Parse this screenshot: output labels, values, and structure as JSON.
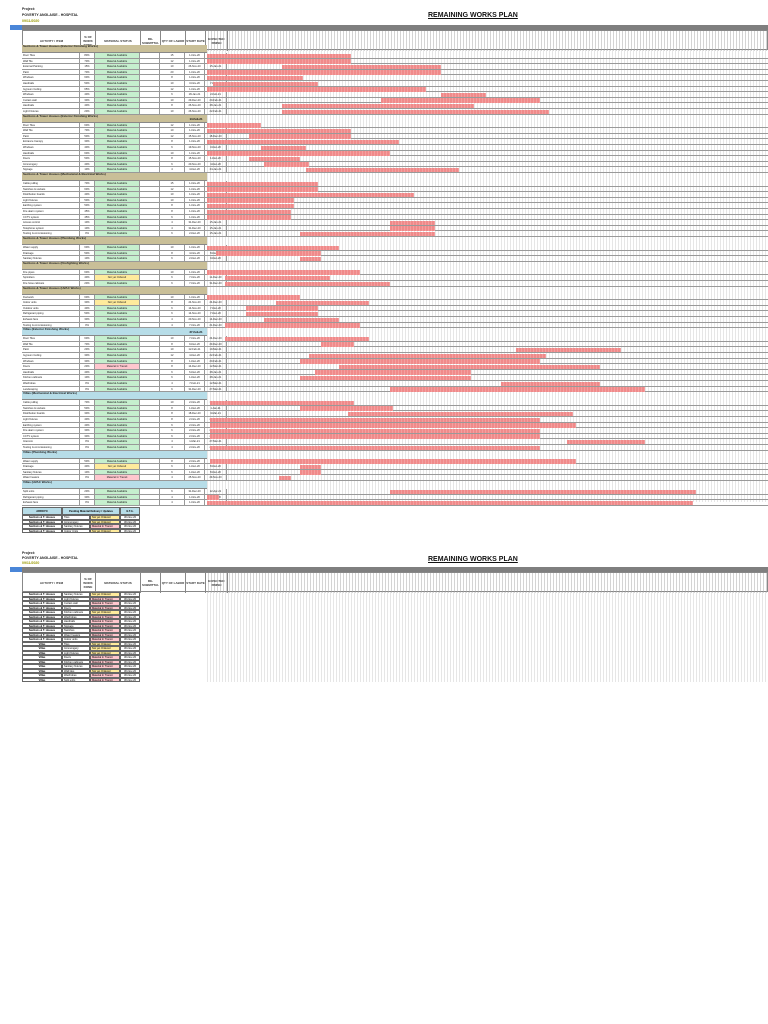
{
  "page1": {
    "project_label": "Project:",
    "project_name": "POVERTY ANGLAISE - HOSPITAL",
    "date": "09/11/2020",
    "title": "REMAINING WORKS PLAN"
  },
  "page2": {
    "project_label": "Project:",
    "project_name": "POVERTY ANGLAISE - HOSPITAL",
    "date": "09/11/2020",
    "title": "REMAINING WORKS PLAN"
  },
  "columns": [
    "ACTIVITY / ITEM",
    "% OF WORK DONE",
    "MATERIAL STATUS",
    "RE-SUBMITTAL",
    "QTY OF LABOR",
    "START DATE",
    "EXPECTED FINISH"
  ],
  "status_colors": {
    "Material Available": "#c6efce",
    "Not yet Ordered": "#ffeb9c",
    "Material In Transit": "#ffc7ce"
  },
  "bar_color": "#f08a8a",
  "sections": [
    {
      "title": "Sections & Tower Houses (Exterior Finishing Works)",
      "color": "#c9bf98",
      "finish": "",
      "rows": [
        [
          "Floor Tiles",
          "80%",
          "Material Available",
          "",
          "15",
          "1-Nov-20",
          "7-Dec-20",
          0,
          48
        ],
        [
          "Wall Tile",
          "70%",
          "Material Available",
          "",
          "12",
          "1-Nov-20",
          "7-Dec-20",
          0,
          48
        ],
        [
          "External Painting",
          "15%",
          "Material Available",
          "",
          "10",
          "26-Nov-20",
          "15-Jan-21",
          25,
          53
        ],
        [
          "Paint",
          "70%",
          "Material Available",
          "",
          "20",
          "1-Nov-20",
          "17-Jan-21",
          0,
          78
        ],
        [
          "Windows",
          "60%",
          "Material Available",
          "",
          "8",
          "1-Nov-20",
          "2-Dec-20",
          0,
          32
        ],
        [
          "Handrails",
          "50%",
          "Material Available",
          "",
          "10",
          "3-Nov-20",
          "7-Dec-20",
          2,
          35
        ],
        [
          "Gypsum Ceiling",
          "65%",
          "Material Available",
          "",
          "12",
          "1-Nov-20",
          "12-Jan-21",
          0,
          73
        ],
        [
          "Windows",
          "40%",
          "Material Available",
          "",
          "6",
          "18-Jan-21",
          "2-Feb-21",
          78,
          15
        ],
        [
          "Curtain wall",
          "30%",
          "Material Available",
          "",
          "10",
          "29-Dec-20",
          "20-Feb-21",
          58,
          53
        ],
        [
          "Handrails",
          "40%",
          "Material Available",
          "",
          "8",
          "26-Nov-20",
          "28-Jan-21",
          25,
          64
        ],
        [
          "Light Fixtures",
          "20%",
          "Material Available",
          "",
          "10",
          "26-Nov-20",
          "22-Feb-21",
          25,
          89
        ]
      ]
    },
    {
      "title": "Sections & Tower Houses (Exterior Finishing Works)",
      "color": "#c9bf98",
      "finish": "14-Feb-21",
      "rows": [
        [
          "Floor Tiles",
          "60%",
          "Material Available",
          "",
          "12",
          "1-Nov-20",
          "18-Nov-20",
          0,
          18
        ],
        [
          "Wall Tile",
          "70%",
          "Material Available",
          "",
          "10",
          "1-Nov-20",
          "18-Dec-20",
          0,
          48
        ],
        [
          "Paint",
          "50%",
          "Material Available",
          "",
          "12",
          "15-Nov-20",
          "18-Dec-20",
          14,
          34
        ],
        [
          "Entrance Canopy",
          "30%",
          "Material Available",
          "",
          "8",
          "1-Nov-20",
          "3-Jan-21",
          0,
          64
        ],
        [
          "Windows",
          "40%",
          "Material Available",
          "",
          "6",
          "19-Nov-20",
          "3-Dec-20",
          18,
          15
        ],
        [
          "Handrails",
          "60%",
          "Material Available",
          "",
          "10",
          "1-Nov-20",
          "31-Dec-20",
          0,
          61
        ],
        [
          "Doors",
          "50%",
          "Material Available",
          "",
          "8",
          "15-Nov-20",
          "1-Dec-20",
          14,
          17
        ],
        [
          "Ironmongery",
          "40%",
          "Material Available",
          "",
          "6",
          "20-Nov-20",
          "4-Dec-20",
          19,
          15
        ],
        [
          "Signage",
          "10%",
          "Material Available",
          "",
          "4",
          "4-Dec-20",
          "24-Jan-21",
          33,
          51
        ]
      ]
    },
    {
      "title": "Sections & Tower Houses (Mechanical & Electrical Works)",
      "color": "#c9bf98",
      "finish": "",
      "rows": [
        [
          "Cable pulling",
          "70%",
          "Material Available",
          "",
          "15",
          "1-Nov-20",
          "7-Dec-20",
          0,
          37
        ],
        [
          "Switches & sockets",
          "60%",
          "Material Available",
          "",
          "12",
          "1-Nov-20",
          "7-Dec-20",
          0,
          37
        ],
        [
          "Distribution boards",
          "40%",
          "Material Available",
          "",
          "10",
          "1-Nov-20",
          "8-Jan-21",
          0,
          69
        ],
        [
          "Light fixtures",
          "50%",
          "Material Available",
          "",
          "10",
          "1-Nov-20",
          "29-Nov-20",
          0,
          29
        ],
        [
          "Earthing system",
          "50%",
          "Material Available",
          "",
          "8",
          "1-Nov-20",
          "29-Nov-20",
          0,
          29
        ],
        [
          "Fire alarm system",
          "45%",
          "Material Available",
          "",
          "8",
          "1-Nov-20",
          "28-Nov-20",
          0,
          28
        ],
        [
          "CCTV system",
          "45%",
          "Material Available",
          "",
          "6",
          "1-Nov-20",
          "28-Nov-20",
          0,
          28
        ],
        [
          "Access control",
          "10%",
          "Material Available",
          "",
          "4",
          "31-Dec-20",
          "15-Jan-21",
          61,
          15
        ],
        [
          "Telephone system",
          "10%",
          "Material Available",
          "",
          "4",
          "31-Dec-20",
          "15-Jan-21",
          61,
          15
        ],
        [
          "Testing & commissioning",
          "0%",
          "Material Available",
          "",
          "6",
          "2-Dec-20",
          "15-Jan-21",
          31,
          45
        ]
      ]
    },
    {
      "title": "Sections & Tower Houses (Plumbing Works)",
      "color": "#c9bf98",
      "finish": "",
      "rows": [
        [
          "Water supply",
          "60%",
          "Material Available",
          "",
          "10",
          "1-Nov-20",
          "14-Dec-20",
          0,
          44
        ],
        [
          "Drainage",
          "50%",
          "Material Available",
          "",
          "8",
          "4-Nov-20",
          "8-Dec-20",
          3,
          35
        ],
        [
          "Sanitary fixtures",
          "10%",
          "Material Available",
          "",
          "6",
          "2-Dec-20",
          "9-Dec-20",
          31,
          7
        ]
      ]
    },
    {
      "title": "Sections & Tower Houses (Firefighting Works)",
      "color": "#c9bf98",
      "finish": "",
      "rows": [
        [
          "Fire pipes",
          "60%",
          "Material Available",
          "",
          "10",
          "1-Nov-20",
          "21-Dec-20",
          0,
          51
        ],
        [
          "Sprinklers",
          "40%",
          "Not yet Ordered",
          "",
          "6",
          "7-Nov-20",
          "11-Dec-20",
          6,
          35
        ],
        [
          "Fire hose cabinets",
          "20%",
          "Material Available",
          "",
          "6",
          "7-Nov-20",
          "31-Dec-20",
          6,
          55
        ]
      ]
    },
    {
      "title": "Sections & Tower Houses (HVAC Works)",
      "color": "#c9bf98",
      "finish": "",
      "rows": [
        [
          "Ductwork",
          "60%",
          "Material Available",
          "",
          "10",
          "1-Nov-20",
          "1-Dec-20",
          0,
          31
        ],
        [
          "Indoor units",
          "30%",
          "Not yet Ordered",
          "",
          "8",
          "24-Nov-20",
          "24-Dec-20",
          23,
          31
        ],
        [
          "Outdoor units",
          "40%",
          "Material Available",
          "",
          "6",
          "14-Nov-20",
          "7-Dec-20",
          13,
          24
        ],
        [
          "Refrigerant piping",
          "50%",
          "Material Available",
          "",
          "6",
          "14-Nov-20",
          "7-Dec-20",
          13,
          24
        ],
        [
          "Exhaust fans",
          "30%",
          "Material Available",
          "",
          "4",
          "20-Nov-20",
          "14-Dec-20",
          19,
          25
        ],
        [
          "Testing & commissioning",
          "0%",
          "Material Available",
          "",
          "4",
          "7-Nov-20",
          "21-Dec-20",
          6,
          45
        ]
      ]
    },
    {
      "title": "Villas (Exterior Finishing Works)",
      "color": "#b7dde8",
      "finish": "27-Feb-21",
      "rows": [
        [
          "Floor Tiles",
          "60%",
          "Material Available",
          "",
          "10",
          "7-Nov-20",
          "24-Dec-20",
          6,
          48
        ],
        [
          "Wall Tile",
          "70%",
          "Material Available",
          "",
          "8",
          "9-Dec-20",
          "20-Dec-20",
          38,
          11
        ],
        [
          "Paint",
          "20%",
          "Material Available",
          "",
          "10",
          "12-Feb-21",
          "19-Mar-21",
          103,
          35
        ],
        [
          "Gypsum Ceiling",
          "30%",
          "Material Available",
          "",
          "12",
          "4-Dec-20",
          "22-Feb-21",
          34,
          79
        ],
        [
          "Windows",
          "30%",
          "Material Available",
          "",
          "8",
          "1-Dec-20",
          "20-Feb-21",
          31,
          80
        ],
        [
          "Doors",
          "20%",
          "Material In Transit",
          "",
          "8",
          "14-Dec-20",
          "12-Mar-21",
          44,
          87
        ],
        [
          "Handrails",
          "40%",
          "Material Available",
          "",
          "6",
          "6-Dec-20",
          "28-Jan-21",
          36,
          52
        ],
        [
          "Kitchen cabinets",
          "10%",
          "Material Available",
          "",
          "6",
          "1-Dec-20",
          "28-Jan-21",
          31,
          57
        ],
        [
          "Wardrobes",
          "0%",
          "Material Available",
          "",
          "4",
          "7-Feb-21",
          "12-Mar-21",
          98,
          33
        ],
        [
          "Landscaping",
          "0%",
          "Material Available",
          "",
          "6",
          "31-Dec-20",
          "27-Mar-21",
          61,
          85
        ]
      ]
    },
    {
      "title": "Villas (Mechanical & Electrical Works)",
      "color": "#b7dde8",
      "finish": "",
      "rows": [
        [
          "Cable pulling",
          "70%",
          "Material Available",
          "",
          "10",
          "2-Nov-20",
          "19-Dec-20",
          1,
          48
        ],
        [
          "Switches & sockets",
          "50%",
          "Material Available",
          "",
          "8",
          "1-Dec-20",
          "1-Jan-21",
          31,
          31
        ],
        [
          "Distribution boards",
          "30%",
          "Material Available",
          "",
          "8",
          "18-Dec-20",
          "3-Mar-21",
          47,
          75
        ],
        [
          "Light fixtures",
          "40%",
          "Material Available",
          "",
          "8",
          "2-Nov-20",
          "20-Feb-21",
          1,
          110
        ],
        [
          "Earthing system",
          "40%",
          "Material Available",
          "",
          "6",
          "2-Nov-20",
          "3-Mar-21",
          1,
          122
        ],
        [
          "Fire alarm system",
          "30%",
          "Material Available",
          "",
          "6",
          "2-Nov-20",
          "20-Feb-21",
          1,
          110
        ],
        [
          "CCTV system",
          "30%",
          "Material Available",
          "",
          "6",
          "2-Nov-20",
          "20-Feb-21",
          1,
          110
        ],
        [
          "Intercom",
          "0%",
          "Material Available",
          "",
          "4",
          "1-Mar-21",
          "27-Mar-21",
          120,
          26
        ],
        [
          "Testing & commissioning",
          "0%",
          "Material Available",
          "",
          "4",
          "2-Nov-20",
          "20-Feb-21",
          1,
          110
        ]
      ]
    },
    {
      "title": "Villas (Plumbing Works)",
      "color": "#b7dde8",
      "finish": "",
      "rows": [
        [
          "Water supply",
          "50%",
          "Material Available",
          "",
          "8",
          "2-Nov-20",
          "3-Mar-21",
          1,
          122
        ],
        [
          "Drainage",
          "40%",
          "Not yet Ordered",
          "",
          "6",
          "1-Dec-20",
          "8-Dec-20",
          31,
          7
        ],
        [
          "Sanitary fixtures",
          "10%",
          "Material Available",
          "",
          "6",
          "1-Dec-20",
          "8-Dec-20",
          31,
          7
        ],
        [
          "Water heaters",
          "0%",
          "Material In Transit",
          "",
          "4",
          "25-Nov-20",
          "29-Nov-20",
          24,
          4
        ]
      ]
    },
    {
      "title": "Villas (HVAC Works)",
      "color": "#b7dde8",
      "finish": "",
      "rows": [
        [
          "Split units",
          "20%",
          "Material Available",
          "",
          "6",
          "31-Dec-20",
          "12-Apr-21",
          61,
          102
        ],
        [
          "Refrigerant piping",
          "30%",
          "Material Available",
          "",
          "4",
          "1-Nov-20",
          "5-Nov-20",
          0,
          4
        ],
        [
          "Exhaust fans",
          "0%",
          "Material Available",
          "",
          "4",
          "1-Nov-20",
          "12-Apr-21",
          0,
          162
        ]
      ]
    }
  ],
  "summary": {
    "headers": [
      "ARROYO",
      "Pending Material Delivery / Updates",
      "E.T.A."
    ],
    "rows": [
      [
        "Sections & T. Houses",
        "Tiles",
        "Not yet Ordered",
        "30-Nov-20"
      ],
      [
        "Sections & T. Houses",
        "Ironmongery",
        "Not yet Ordered",
        "30-Nov-20"
      ],
      [
        "Sections & T. Houses",
        "Sanitary fixtures",
        "Material In Transit",
        "30-Nov-20"
      ],
      [
        "Sections & T. Houses",
        "Indoor Units",
        "Not yet Ordered",
        "30-Nov-20"
      ]
    ]
  },
  "page2_rows": [
    [
      "Sections & T. Houses",
      "Sanitary fixtures",
      "Not yet Ordered",
      "30-Nov-20"
    ],
    [
      "Sections & T. Houses",
      "Light fixtures",
      "Material In Transit",
      "30-Nov-20"
    ],
    [
      "Sections & T. Houses",
      "Curtain wall",
      "Material In Transit",
      "30-Nov-20"
    ],
    [
      "Sections & T. Houses",
      "Doors",
      "Material In Transit",
      "30-Nov-20"
    ],
    [
      "Sections & T. Houses",
      "Kitchen cabinets",
      "Not yet Ordered",
      "30-Nov-20"
    ],
    [
      "Sections & T. Houses",
      "Wardrobes",
      "Material In Transit",
      "30-Nov-20"
    ],
    [
      "Sections & T. Houses",
      "Handrails",
      "Material In Transit",
      "30-Nov-20"
    ],
    [
      "Sections & T. Houses",
      "Signage",
      "Material In Transit",
      "30-Nov-20"
    ],
    [
      "Sections & T. Houses",
      "Switches",
      "Material In Transit",
      "30-Nov-20"
    ],
    [
      "Sections & T. Houses",
      "Water heaters",
      "Material In Transit",
      "30-Nov-20"
    ],
    [
      "Sections & T. Houses",
      "Indoor units",
      "Material In Transit",
      "30-Nov-20"
    ],
    [
      "Villas",
      "Tiles",
      "Not yet Ordered",
      "30-Nov-20"
    ],
    [
      "Villas",
      "Ironmongery",
      "Not yet Ordered",
      "30-Nov-20"
    ],
    [
      "Villas",
      "Light fixtures",
      "Not yet Ordered",
      "30-Nov-20"
    ],
    [
      "Villas",
      "Doors",
      "Material In Transit",
      "30-Nov-20"
    ],
    [
      "Villas",
      "Kitchen cabinets",
      "Material In Transit",
      "30-Nov-20"
    ],
    [
      "Villas",
      "Sanitary fixtures",
      "Material In Transit",
      "30-Nov-20"
    ],
    [
      "Villas",
      "Wall tiles",
      "Not yet Ordered",
      "30-Nov-20"
    ],
    [
      "Villas",
      "Wardrobes",
      "Material In Transit",
      "30-Nov-20"
    ],
    [
      "Villas",
      "Split units",
      "Material In Transit",
      "30-Nov-20"
    ]
  ]
}
